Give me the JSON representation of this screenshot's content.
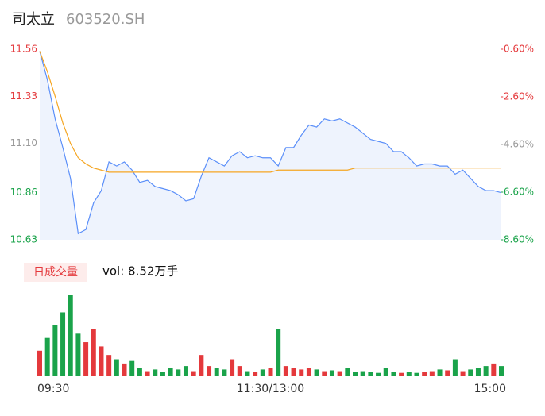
{
  "header": {
    "name": "司太立",
    "code": "603520.SH"
  },
  "chart_data": [
    {
      "type": "line",
      "categories": [
        "09:30",
        null,
        null,
        null,
        null,
        null,
        null,
        null,
        null,
        null,
        null,
        null,
        null,
        null,
        null,
        null,
        null,
        null,
        null,
        null,
        null,
        null,
        null,
        null,
        null,
        null,
        null,
        null,
        null,
        null,
        "11:30/13:00",
        null,
        null,
        null,
        null,
        null,
        null,
        null,
        null,
        null,
        null,
        null,
        null,
        null,
        null,
        null,
        null,
        null,
        null,
        null,
        null,
        null,
        null,
        null,
        null,
        null,
        null,
        null,
        null,
        null,
        "15:00"
      ],
      "series": [
        {
          "color": "#5b8ff9",
          "fill": "#eef3fd",
          "values": [
            11.55,
            11.41,
            11.22,
            11.08,
            10.93,
            10.66,
            10.68,
            10.81,
            10.87,
            11.01,
            10.99,
            11.01,
            10.97,
            10.91,
            10.92,
            10.89,
            10.88,
            10.87,
            10.85,
            10.82,
            10.83,
            10.94,
            11.03,
            11.01,
            10.99,
            11.04,
            11.06,
            11.03,
            11.04,
            11.03,
            11.03,
            10.99,
            11.08,
            11.08,
            11.14,
            11.19,
            11.18,
            11.22,
            11.21,
            11.22,
            11.2,
            11.18,
            11.15,
            11.12,
            11.11,
            11.1,
            11.06,
            11.06,
            11.03,
            10.99,
            11.0,
            11.0,
            10.99,
            10.99,
            10.95,
            10.97,
            10.93,
            10.89,
            10.87,
            10.87,
            10.86
          ]
        },
        {
          "color": "#f5a623",
          "values": [
            11.55,
            11.45,
            11.33,
            11.2,
            11.1,
            11.03,
            11.0,
            10.98,
            10.97,
            10.96,
            10.96,
            10.96,
            10.96,
            10.96,
            10.96,
            10.96,
            10.96,
            10.96,
            10.96,
            10.96,
            10.96,
            10.96,
            10.96,
            10.96,
            10.96,
            10.96,
            10.96,
            10.96,
            10.96,
            10.96,
            10.96,
            10.97,
            10.97,
            10.97,
            10.97,
            10.97,
            10.97,
            10.97,
            10.97,
            10.97,
            10.97,
            10.98,
            10.98,
            10.98,
            10.98,
            10.98,
            10.98,
            10.98,
            10.98,
            10.98,
            10.98,
            10.98,
            10.98,
            10.98,
            10.98,
            10.98,
            10.98,
            10.98,
            10.98,
            10.98,
            10.98
          ]
        }
      ],
      "ylim": [
        10.63,
        11.56
      ],
      "yticks": [
        11.56,
        11.33,
        {
          "value": 11.1,
          "label": "11.10"
        },
        10.86,
        10.63
      ],
      "y2lim": [
        -8.6,
        -0.6
      ],
      "y2ticks": [
        {
          "value": -0.6,
          "label": "-0.60%"
        },
        {
          "value": -2.6,
          "label": "-2.60%"
        },
        {
          "value": -4.6,
          "label": "-4.60%"
        },
        {
          "value": -6.6,
          "label": "-6.60%"
        },
        {
          "value": -8.6,
          "label": "-8.60%"
        }
      ],
      "grid": false
    },
    {
      "type": "bar",
      "title": "日成交量",
      "subtitle": "vol: 8.52万手",
      "up_color": "#e4393c",
      "down_color": "#1aa34a",
      "values": [
        30,
        45,
        60,
        75,
        95,
        50,
        40,
        55,
        35,
        25,
        20,
        15,
        18,
        10,
        6,
        8,
        5,
        10,
        8,
        12,
        6,
        25,
        12,
        10,
        8,
        20,
        12,
        6,
        5,
        8,
        10,
        55,
        12,
        10,
        8,
        10,
        8,
        6,
        7,
        6,
        10,
        5,
        6,
        5,
        4,
        10,
        5,
        4,
        5,
        4,
        5,
        6,
        8,
        7,
        20,
        6,
        8,
        10,
        12,
        15,
        12
      ]
    }
  ]
}
